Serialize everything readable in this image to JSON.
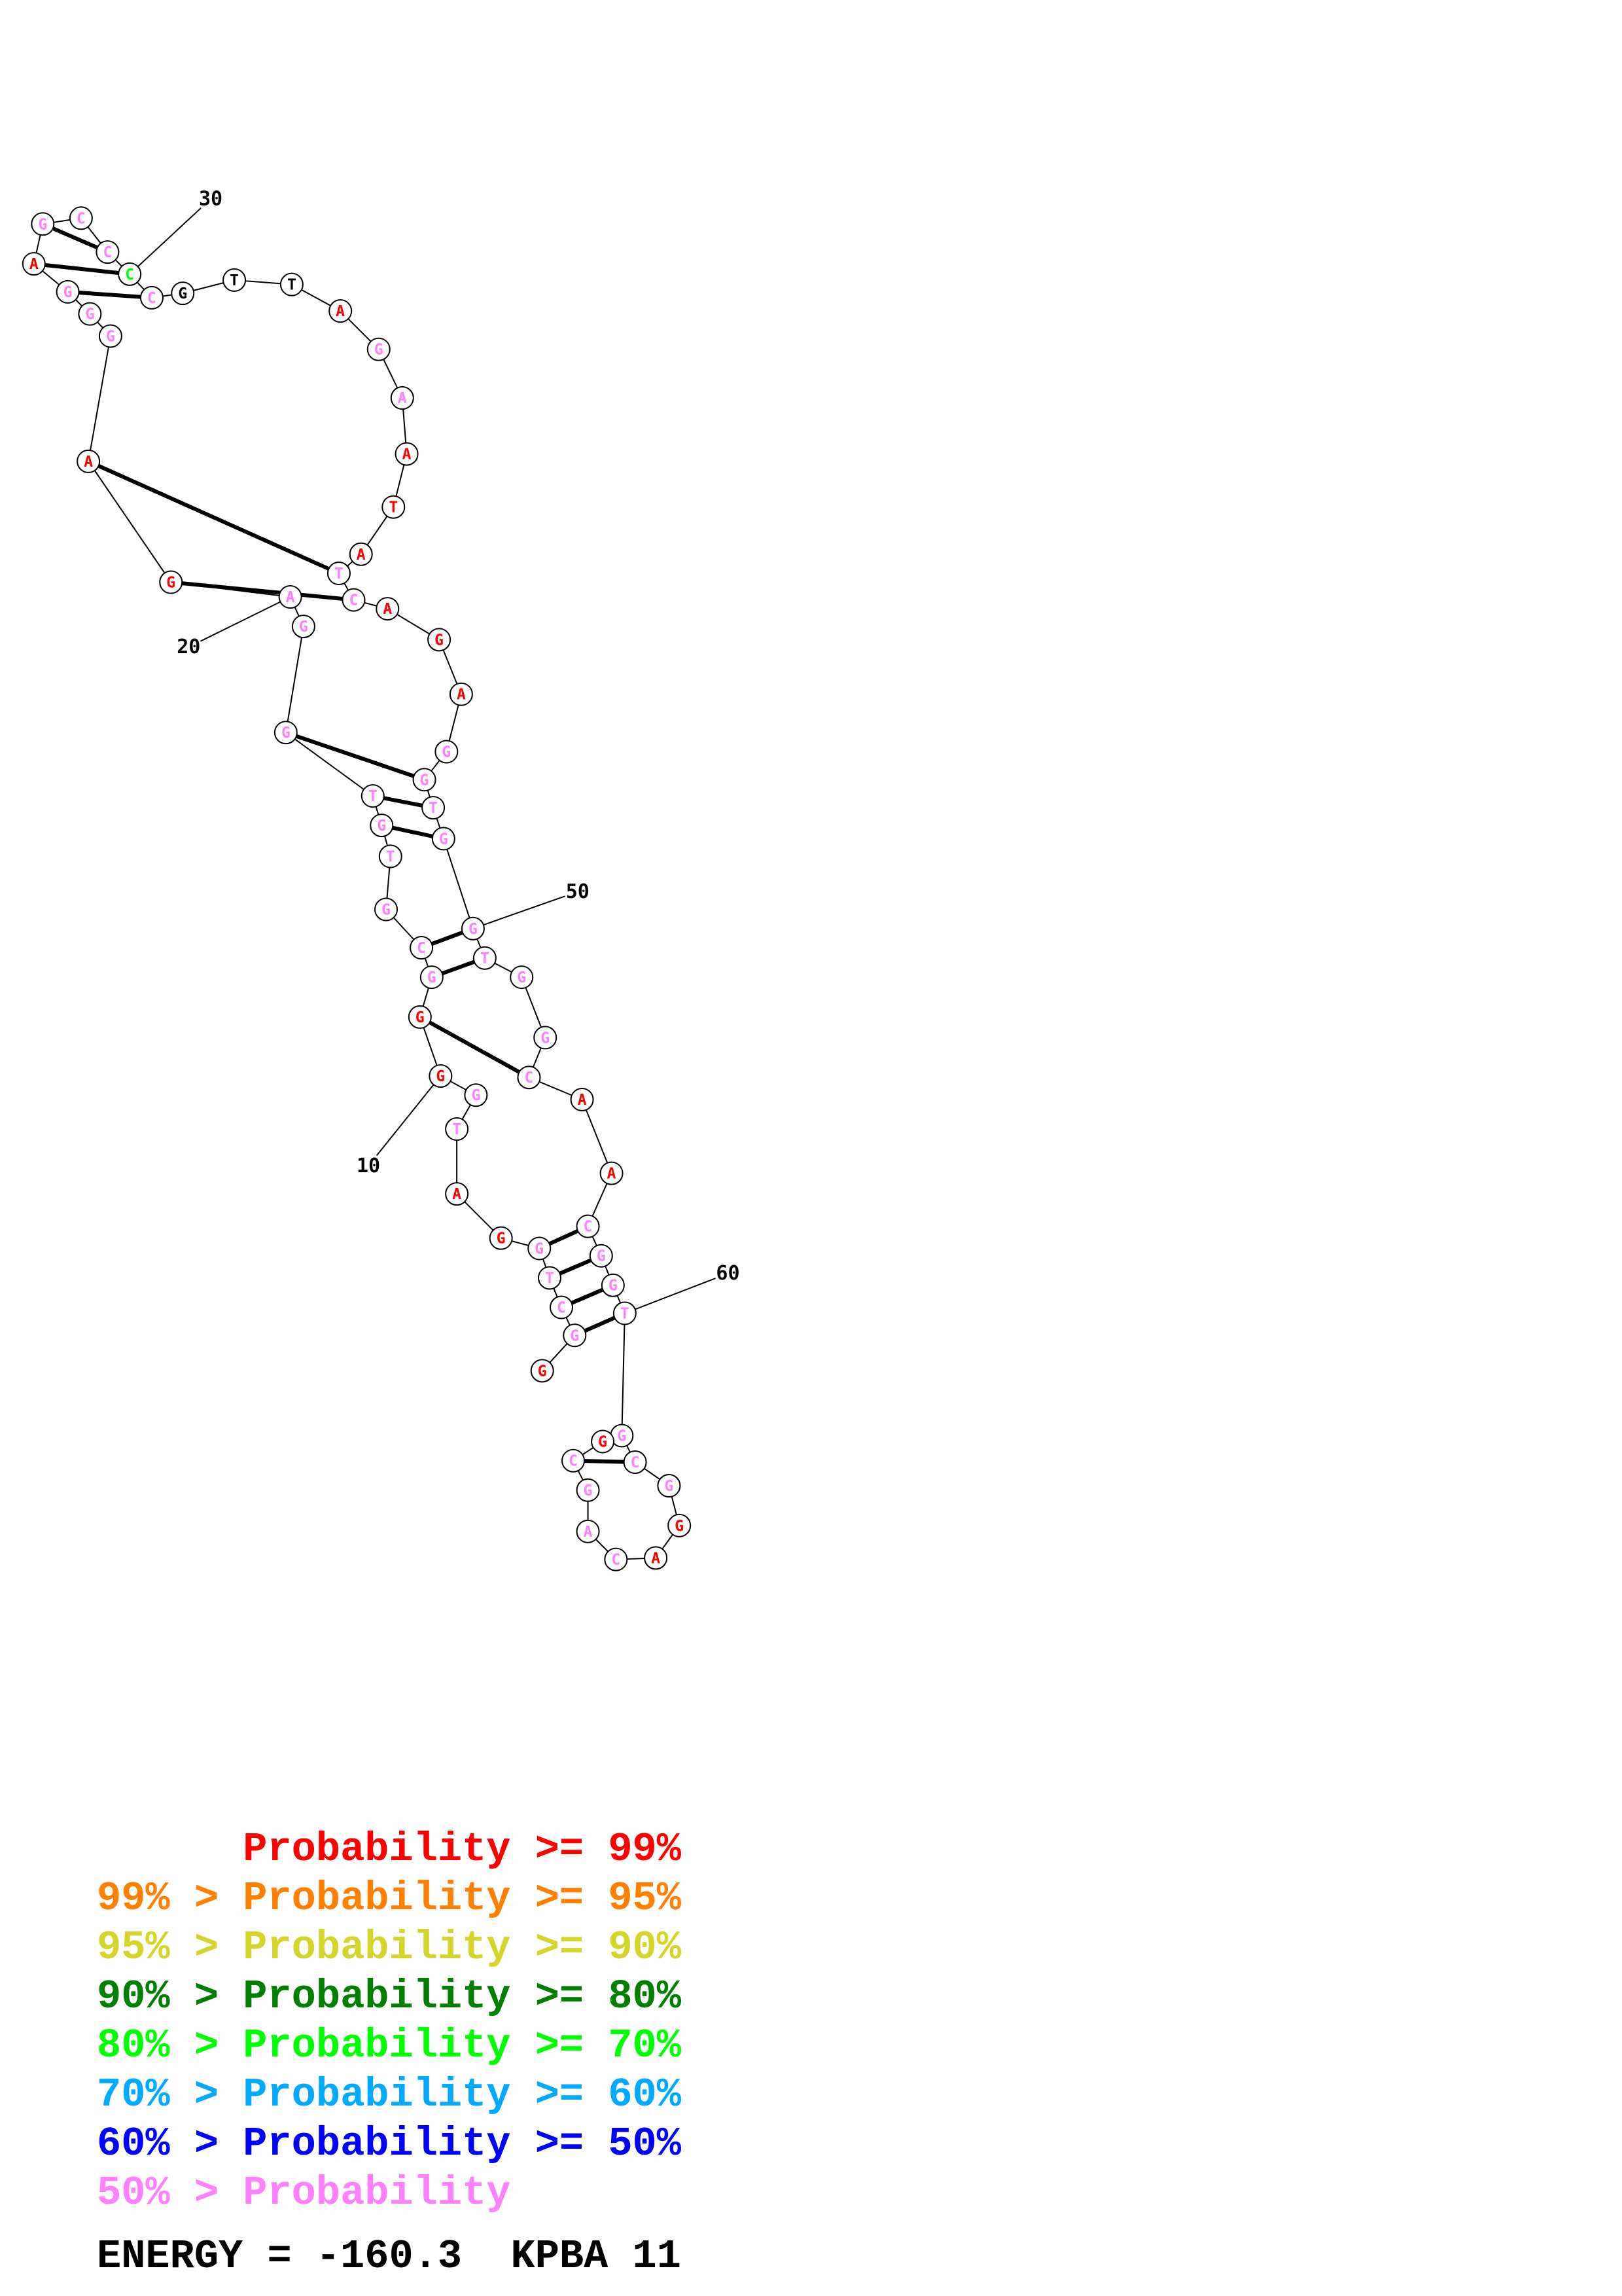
{
  "colors": {
    "p99": "#ff0000",
    "p95": "#ff7f00",
    "p90": "#d4d42a",
    "p80": "#007f00",
    "p70": "#00ff00",
    "p60": "#00aaff",
    "p50": "#0000ff",
    "plow": "#ff80ff",
    "unpaired": "#000000"
  },
  "structure": {
    "nucleotides": [
      {
        "n": 1,
        "base": "G",
        "prob": "p99"
      },
      {
        "n": 2,
        "base": "G",
        "prob": "plow"
      },
      {
        "n": 3,
        "base": "C",
        "prob": "plow"
      },
      {
        "n": 4,
        "base": "T",
        "prob": "plow"
      },
      {
        "n": 5,
        "base": "G",
        "prob": "plow"
      },
      {
        "n": 6,
        "base": "G",
        "prob": "p99"
      },
      {
        "n": 7,
        "base": "A",
        "prob": "p99"
      },
      {
        "n": 8,
        "base": "T",
        "prob": "plow"
      },
      {
        "n": 9,
        "base": "G",
        "prob": "plow"
      },
      {
        "n": 10,
        "base": "G",
        "prob": "p99"
      },
      {
        "n": 11,
        "base": "G",
        "prob": "p99"
      },
      {
        "n": 12,
        "base": "G",
        "prob": "plow"
      },
      {
        "n": 13,
        "base": "C",
        "prob": "plow"
      },
      {
        "n": 14,
        "base": "G",
        "prob": "plow"
      },
      {
        "n": 15,
        "base": "T",
        "prob": "plow"
      },
      {
        "n": 16,
        "base": "G",
        "prob": "plow"
      },
      {
        "n": 17,
        "base": "T",
        "prob": "plow"
      },
      {
        "n": 18,
        "base": "G",
        "prob": "plow"
      },
      {
        "n": 19,
        "base": "G",
        "prob": "plow"
      },
      {
        "n": 20,
        "base": "A",
        "prob": "plow"
      },
      {
        "n": 21,
        "base": "G",
        "prob": "p99"
      },
      {
        "n": 22,
        "base": "A",
        "prob": "p99"
      },
      {
        "n": 23,
        "base": "G",
        "prob": "plow"
      },
      {
        "n": 24,
        "base": "G",
        "prob": "plow"
      },
      {
        "n": 25,
        "base": "G",
        "prob": "plow"
      },
      {
        "n": 26,
        "base": "A",
        "prob": "p99"
      },
      {
        "n": 27,
        "base": "G",
        "prob": "plow"
      },
      {
        "n": 28,
        "base": "C",
        "prob": "plow"
      },
      {
        "n": 29,
        "base": "C",
        "prob": "plow"
      },
      {
        "n": 30,
        "base": "C",
        "prob": "p70"
      },
      {
        "n": 31,
        "base": "C",
        "prob": "plow"
      },
      {
        "n": 32,
        "base": "G",
        "prob": "unpaired"
      },
      {
        "n": 33,
        "base": "T",
        "prob": "unpaired"
      },
      {
        "n": 34,
        "base": "T",
        "prob": "unpaired"
      },
      {
        "n": 35,
        "base": "A",
        "prob": "p99"
      },
      {
        "n": 36,
        "base": "G",
        "prob": "plow"
      },
      {
        "n": 37,
        "base": "A",
        "prob": "plow"
      },
      {
        "n": 38,
        "base": "A",
        "prob": "p99"
      },
      {
        "n": 39,
        "base": "T",
        "prob": "p99"
      },
      {
        "n": 40,
        "base": "A",
        "prob": "p99"
      },
      {
        "n": 41,
        "base": "T",
        "prob": "plow"
      },
      {
        "n": 42,
        "base": "C",
        "prob": "plow"
      },
      {
        "n": 43,
        "base": "A",
        "prob": "p99"
      },
      {
        "n": 44,
        "base": "G",
        "prob": "p99"
      },
      {
        "n": 45,
        "base": "A",
        "prob": "p99"
      },
      {
        "n": 46,
        "base": "G",
        "prob": "plow"
      },
      {
        "n": 47,
        "base": "G",
        "prob": "plow"
      },
      {
        "n": 48,
        "base": "T",
        "prob": "plow"
      },
      {
        "n": 49,
        "base": "G",
        "prob": "plow"
      },
      {
        "n": 50,
        "base": "G",
        "prob": "plow"
      },
      {
        "n": 51,
        "base": "T",
        "prob": "plow"
      },
      {
        "n": 52,
        "base": "G",
        "prob": "plow"
      },
      {
        "n": 53,
        "base": "G",
        "prob": "plow"
      },
      {
        "n": 54,
        "base": "C",
        "prob": "plow"
      },
      {
        "n": 55,
        "base": "A",
        "prob": "p99"
      },
      {
        "n": 56,
        "base": "A",
        "prob": "p99"
      },
      {
        "n": 57,
        "base": "C",
        "prob": "plow"
      },
      {
        "n": 58,
        "base": "G",
        "prob": "plow"
      },
      {
        "n": 59,
        "base": "G",
        "prob": "plow"
      },
      {
        "n": 60,
        "base": "T",
        "prob": "plow"
      },
      {
        "n": 61,
        "base": "G",
        "prob": "plow"
      },
      {
        "n": 62,
        "base": "C",
        "prob": "plow"
      },
      {
        "n": 63,
        "base": "G",
        "prob": "plow"
      },
      {
        "n": 64,
        "base": "G",
        "prob": "p99"
      },
      {
        "n": 65,
        "base": "A",
        "prob": "p99"
      },
      {
        "n": 66,
        "base": "C",
        "prob": "plow"
      },
      {
        "n": 67,
        "base": "A",
        "prob": "plow"
      },
      {
        "n": 68,
        "base": "G",
        "prob": "plow"
      },
      {
        "n": 69,
        "base": "C",
        "prob": "plow"
      },
      {
        "n": 70,
        "base": "G",
        "prob": "p99"
      }
    ],
    "pairs": [
      [
        2,
        60
      ],
      [
        3,
        59
      ],
      [
        4,
        58
      ],
      [
        5,
        57
      ],
      [
        11,
        54
      ],
      [
        12,
        51
      ],
      [
        13,
        50
      ],
      [
        16,
        49
      ],
      [
        17,
        48
      ],
      [
        18,
        47
      ],
      [
        21,
        42
      ],
      [
        22,
        41
      ],
      [
        25,
        31
      ],
      [
        26,
        30
      ],
      [
        27,
        29
      ],
      [
        61,
        70
      ],
      [
        62,
        69
      ]
    ],
    "numbers": [
      "10",
      "20",
      "30",
      "50",
      "60"
    ]
  },
  "legend": [
    {
      "prefix": "",
      "label": "Probability >= 99%",
      "color": "p99"
    },
    {
      "prefix": "99% > ",
      "label": "Probability >= 95%",
      "color": "p95"
    },
    {
      "prefix": "95% > ",
      "label": "Probability >= 90%",
      "color": "p90"
    },
    {
      "prefix": "90% > ",
      "label": "Probability >= 80%",
      "color": "p80"
    },
    {
      "prefix": "80% > ",
      "label": "Probability >= 70%",
      "color": "p70"
    },
    {
      "prefix": "70% > ",
      "label": "Probability >= 60%",
      "color": "p60"
    },
    {
      "prefix": "60% > ",
      "label": "Probability >= 50%",
      "color": "p50"
    },
    {
      "prefix": "50% > ",
      "label": "Probability",
      "color": "plow"
    }
  ],
  "energy_text": "ENERGY = -160.3  KPBA 11"
}
